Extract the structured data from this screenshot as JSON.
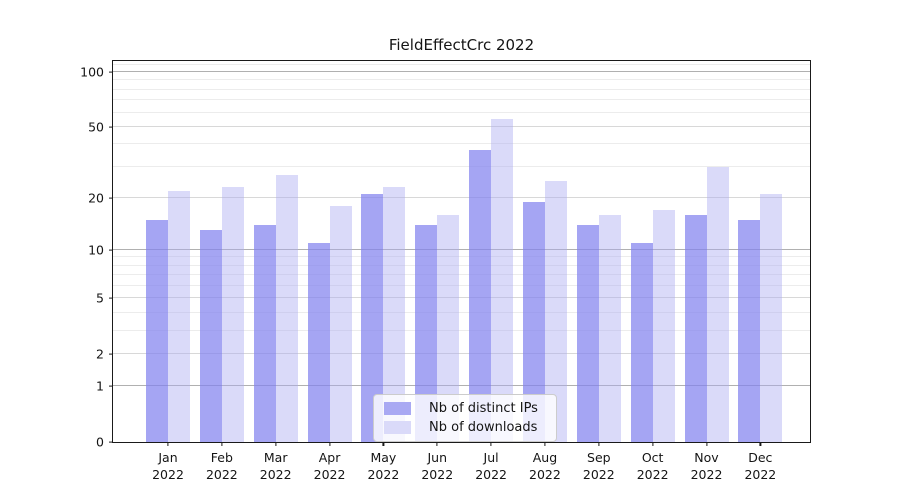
{
  "title": "FieldEffectCrc 2022",
  "chart_data": {
    "type": "bar",
    "title": "FieldEffectCrc 2022",
    "categories": [
      "Jan 2022",
      "Feb 2022",
      "Mar 2022",
      "Apr 2022",
      "May 2022",
      "Jun 2022",
      "Jul 2022",
      "Aug 2022",
      "Sep 2022",
      "Oct 2022",
      "Nov 2022",
      "Dec 2022"
    ],
    "x_tick_line1": [
      "Jan",
      "Feb",
      "Mar",
      "Apr",
      "May",
      "Jun",
      "Jul",
      "Aug",
      "Sep",
      "Oct",
      "Nov",
      "Dec"
    ],
    "x_tick_line2": [
      "2022",
      "2022",
      "2022",
      "2022",
      "2022",
      "2022",
      "2022",
      "2022",
      "2022",
      "2022",
      "2022",
      "2022"
    ],
    "series": [
      {
        "name": "Nb of distinct IPs",
        "values": [
          15,
          13,
          14,
          11,
          21,
          14,
          37,
          19,
          14,
          11,
          16,
          15
        ],
        "fill": "rgba(130,130,238,0.72)",
        "legend_color": "#a9a9f3"
      },
      {
        "name": "Nb of downloads",
        "values": [
          22,
          23,
          27,
          18,
          23,
          16,
          55,
          25,
          16,
          17,
          30,
          21
        ],
        "fill": "rgba(173,173,242,0.45)",
        "legend_color": "#dadaf9"
      }
    ],
    "y_axis": {
      "scale": "log1p",
      "ticks": [
        0,
        1,
        2,
        5,
        10,
        20,
        50,
        100
      ],
      "minor_ticks": [
        3,
        4,
        6,
        7,
        8,
        9,
        30,
        40,
        60,
        70,
        80,
        90,
        110
      ],
      "ymin": 0,
      "ymax": 115
    },
    "xlabel": "",
    "ylabel": "",
    "grid": "both",
    "legend_position": "lower center"
  },
  "colors": {
    "series1": "#a9a9f3",
    "series2": "#dadaf9",
    "grid_major": "#b0b0b0",
    "grid_mid": "#d8d8d8",
    "grid_minor": "#ececec",
    "spine": "#1a1a1a",
    "background": "#ffffff"
  }
}
